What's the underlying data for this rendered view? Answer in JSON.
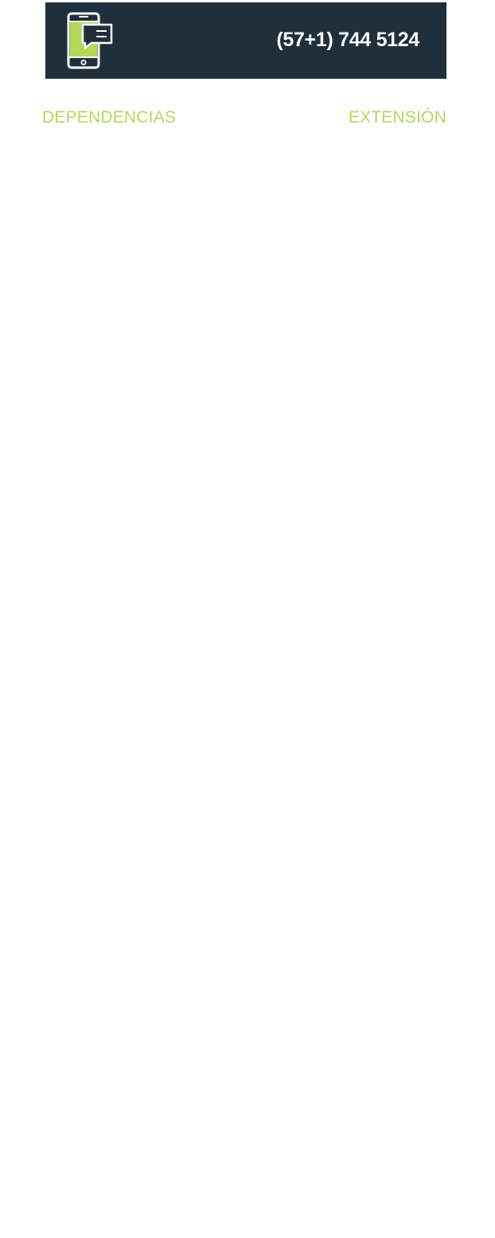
{
  "banner": {
    "icon": "mobile-phone-chat-icon",
    "phone_number": "(57+1) 744 5124",
    "background_color": "#1f2f3b",
    "accent_color": "#b5d75a"
  },
  "table": {
    "headers": {
      "dependencies": "DEPENDENCIAS",
      "extension": "EXTENSIÓN"
    },
    "header_color": "#b5d75a"
  }
}
